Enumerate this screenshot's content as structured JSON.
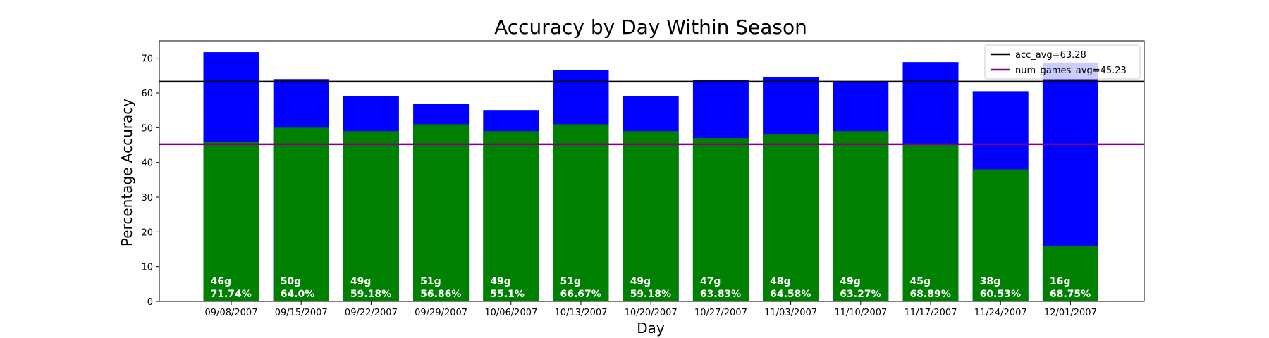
{
  "chart_data": {
    "type": "bar",
    "title": "Accuracy by Day Within Season",
    "xlabel": "Day",
    "ylabel": "Percentage Accuracy",
    "ylim": [
      0,
      75
    ],
    "yticks": [
      0,
      10,
      20,
      30,
      40,
      50,
      60,
      70
    ],
    "grid": false,
    "legend_position": "top-right",
    "categories": [
      "09/08/2007",
      "09/15/2007",
      "09/22/2007",
      "09/29/2007",
      "10/06/2007",
      "10/13/2007",
      "10/20/2007",
      "10/27/2007",
      "11/03/2007",
      "11/10/2007",
      "11/17/2007",
      "11/24/2007",
      "12/01/2007"
    ],
    "series": [
      {
        "values": [
          71.74,
          64.0,
          59.18,
          56.86,
          55.1,
          66.67,
          59.18,
          63.83,
          64.58,
          63.27,
          68.89,
          60.53,
          68.75
        ],
        "color": "#0000ff"
      },
      {
        "values": [
          46,
          50,
          49,
          51,
          49,
          51,
          49,
          47,
          48,
          49,
          45,
          38,
          16
        ],
        "color": "#008000"
      }
    ],
    "bar_labels_games": [
      "46g",
      "50g",
      "49g",
      "51g",
      "49g",
      "51g",
      "49g",
      "47g",
      "48g",
      "49g",
      "45g",
      "38g",
      "16g"
    ],
    "bar_labels_accuracy": [
      "71.74%",
      "64.0%",
      "59.18%",
      "56.86%",
      "55.1%",
      "66.67%",
      "59.18%",
      "63.83%",
      "64.58%",
      "63.27%",
      "68.89%",
      "60.53%",
      "68.75%"
    ],
    "reference_lines": [
      {
        "label": "acc_avg=63.28",
        "value": 63.28,
        "color": "#000000"
      },
      {
        "label": "num_games_avg=45.23",
        "value": 45.23,
        "color": "#800080"
      }
    ]
  }
}
